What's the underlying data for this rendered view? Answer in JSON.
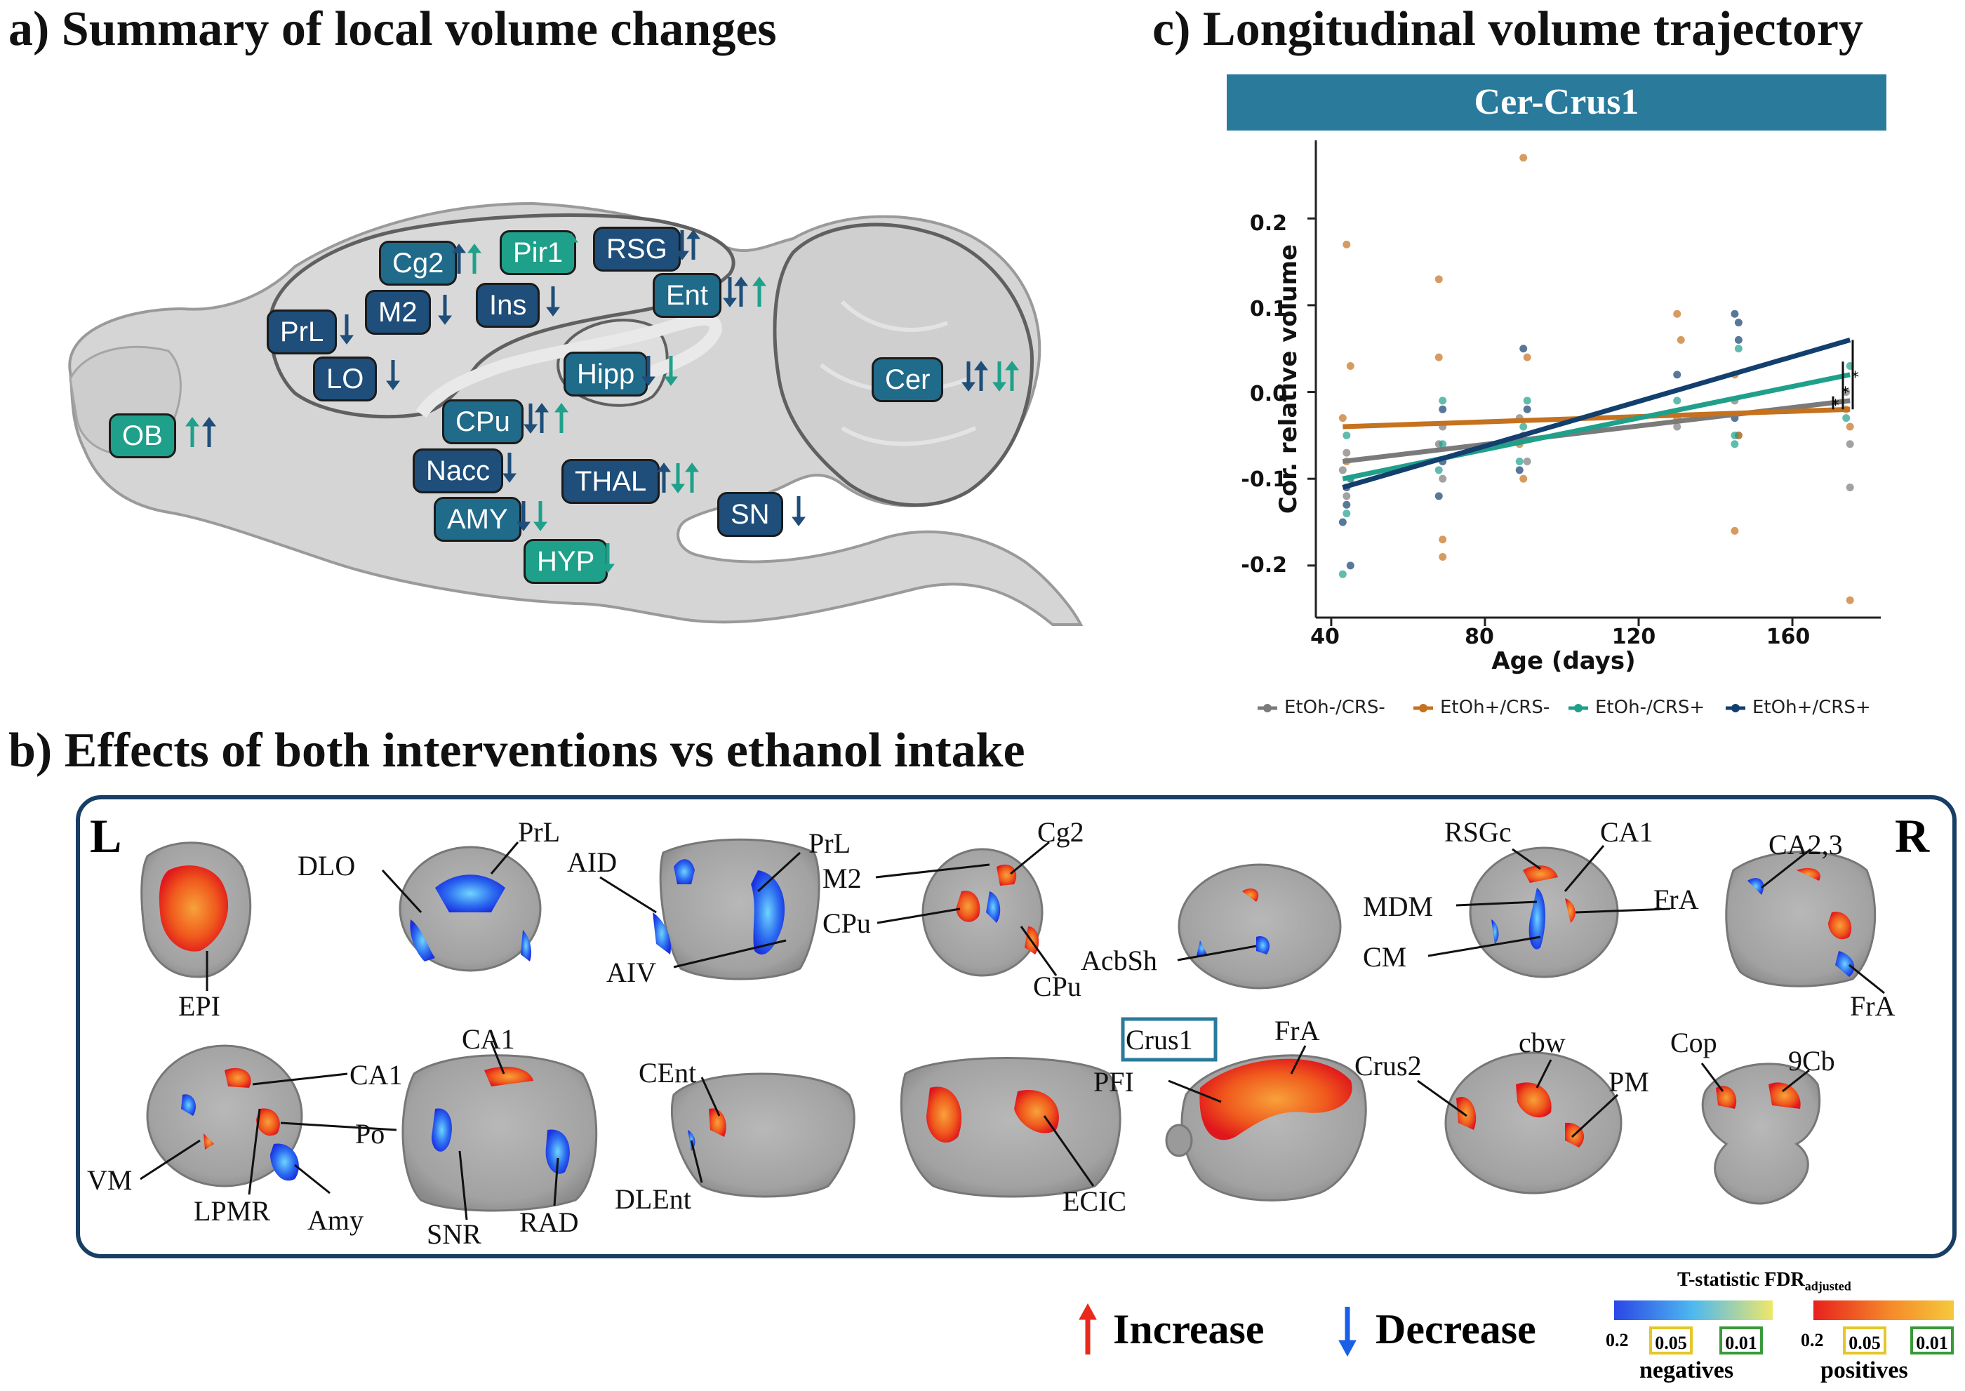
{
  "panel_a": {
    "title": "a) Summary of local volume changes",
    "regions": [
      {
        "label": "Cg2",
        "style": "mid",
        "arrows": [
          "up-dark",
          "up-teal"
        ]
      },
      {
        "label": "Pir1",
        "style": "teal",
        "arrows": [
          "up-teal"
        ]
      },
      {
        "label": "RSG",
        "style": "dark",
        "arrows": [
          "down-dark",
          "up-dark"
        ]
      },
      {
        "label": "M2",
        "style": "dark",
        "arrows": [
          "down-dark"
        ]
      },
      {
        "label": "Ins",
        "style": "dark",
        "arrows": [
          "down-dark"
        ]
      },
      {
        "label": "Ent",
        "style": "mid",
        "arrows": [
          "down-dark",
          "up-dark",
          "up-teal"
        ]
      },
      {
        "label": "PrL",
        "style": "dark",
        "arrows": [
          "down-dark"
        ]
      },
      {
        "label": "LO",
        "style": "dark",
        "arrows": [
          "down-dark"
        ]
      },
      {
        "label": "Hipp",
        "style": "mid",
        "arrows": [
          "down-dark",
          "down-teal"
        ]
      },
      {
        "label": "Cer",
        "style": "mid",
        "arrows": [
          "down-dark",
          "up-dark",
          "down-teal",
          "up-teal"
        ]
      },
      {
        "label": "OB",
        "style": "teal",
        "arrows": [
          "up-teal",
          "up-dark"
        ]
      },
      {
        "label": "CPu",
        "style": "mid",
        "arrows": [
          "down-dark",
          "up-dark",
          "up-teal"
        ]
      },
      {
        "label": "Nacc",
        "style": "dark",
        "arrows": [
          "down-dark"
        ]
      },
      {
        "label": "THAL",
        "style": "dark",
        "arrows": [
          "up-dark",
          "down-teal",
          "up-teal"
        ]
      },
      {
        "label": "AMY",
        "style": "mid",
        "arrows": [
          "down-dark",
          "down-teal"
        ]
      },
      {
        "label": "SN",
        "style": "dark",
        "arrows": [
          "down-dark"
        ]
      },
      {
        "label": "HYP",
        "style": "teal",
        "arrows": [
          "down-teal"
        ]
      }
    ]
  },
  "panel_b": {
    "title": "b) Effects of both interventions vs ethanol intake",
    "left_marker": "L",
    "right_marker": "R",
    "labels": [
      "EPI",
      "DLO",
      "PrL",
      "AID",
      "PrL",
      "AIV",
      "M2",
      "Cg2",
      "CPu",
      "CPu",
      "AcbSh",
      "RSGc",
      "CA1",
      "MDM",
      "FrA",
      "CM",
      "CA2,3",
      "FrA",
      "CA1",
      "VM",
      "Po",
      "LPMR",
      "Amy",
      "CA1",
      "SNR",
      "RAD",
      "CEnt",
      "DLEnt",
      "ECIC",
      "Crus1",
      "PFI",
      "FrA",
      "Crus2",
      "cbw",
      "PM",
      "Cop",
      "9Cb"
    ],
    "increase_label": "Increase",
    "decrease_label": "Decrease",
    "scale_title": "T-statistic FDR",
    "scale_title_sub": "adjusted",
    "negatives": {
      "label": "negatives",
      "start": "0.2",
      "box1": "0.05",
      "box2": "0.01"
    },
    "positives": {
      "label": "positives",
      "start": "0.2",
      "box1": "0.05",
      "box2": "0.01"
    }
  },
  "chart_data": {
    "type": "scatter",
    "title": "c) Longitudinal volume trajectory",
    "subtitle": "Cer-Crus1",
    "xlabel": "Age (days)",
    "ylabel": "Cor. relative volume",
    "xlim": [
      36,
      183
    ],
    "ylim": [
      -0.26,
      0.29
    ],
    "xticks": [
      40,
      80,
      120,
      160
    ],
    "yticks": [
      -0.2,
      -0.1,
      0.0,
      0.1,
      0.2
    ],
    "ytick_labels": [
      "-0.2",
      "-0.1",
      "0.0",
      "0.1",
      "0.2"
    ],
    "xtick_labels": [
      "40",
      "80",
      "120",
      "160"
    ],
    "legend_position": "bottom",
    "significance_markers": [
      "*",
      "*",
      "*"
    ],
    "series": [
      {
        "name": "EtOh-/CRS-",
        "color": "#7a7a7a",
        "fit": [
          [
            43,
            -0.08
          ],
          [
            175,
            -0.01
          ]
        ],
        "points": [
          [
            43,
            -0.09
          ],
          [
            44,
            -0.12
          ],
          [
            45,
            -0.1
          ],
          [
            44,
            -0.07
          ],
          [
            68,
            -0.06
          ],
          [
            69,
            -0.04
          ],
          [
            69,
            -0.1
          ],
          [
            90,
            -0.05
          ],
          [
            91,
            -0.08
          ],
          [
            89,
            -0.03
          ],
          [
            130,
            -0.04
          ],
          [
            145,
            -0.01
          ],
          [
            146,
            -0.05
          ],
          [
            175,
            -0.06
          ],
          [
            175,
            -0.11
          ],
          [
            174,
            0.0
          ]
        ]
      },
      {
        "name": "EtOh+/CRS-",
        "color": "#c5711e",
        "fit": [
          [
            43,
            -0.04
          ],
          [
            175,
            -0.02
          ]
        ],
        "points": [
          [
            44,
            0.17
          ],
          [
            45,
            0.03
          ],
          [
            43,
            -0.03
          ],
          [
            44,
            -0.08
          ],
          [
            68,
            0.13
          ],
          [
            69,
            -0.19
          ],
          [
            69,
            -0.17
          ],
          [
            68,
            0.04
          ],
          [
            90,
            0.27
          ],
          [
            91,
            0.04
          ],
          [
            89,
            -0.06
          ],
          [
            90,
            -0.1
          ],
          [
            130,
            0.09
          ],
          [
            131,
            0.06
          ],
          [
            130,
            -0.03
          ],
          [
            145,
            -0.16
          ],
          [
            146,
            -0.05
          ],
          [
            145,
            0.02
          ],
          [
            175,
            -0.24
          ],
          [
            174,
            -0.02
          ],
          [
            175,
            -0.04
          ]
        ]
      },
      {
        "name": "EtOh-/CRS+",
        "color": "#1fa08a",
        "fit": [
          [
            43,
            -0.1
          ],
          [
            175,
            0.02
          ]
        ],
        "points": [
          [
            43,
            -0.21
          ],
          [
            44,
            -0.14
          ],
          [
            45,
            -0.1
          ],
          [
            44,
            -0.05
          ],
          [
            68,
            -0.09
          ],
          [
            69,
            -0.01
          ],
          [
            69,
            -0.06
          ],
          [
            90,
            -0.04
          ],
          [
            91,
            -0.01
          ],
          [
            89,
            -0.08
          ],
          [
            130,
            -0.01
          ],
          [
            145,
            -0.05
          ],
          [
            146,
            0.05
          ],
          [
            145,
            -0.06
          ],
          [
            175,
            0.03
          ],
          [
            174,
            -0.03
          ]
        ]
      },
      {
        "name": "EtOh+/CRS+",
        "color": "#123f6e",
        "fit": [
          [
            43,
            -0.11
          ],
          [
            175,
            0.06
          ]
        ],
        "points": [
          [
            43,
            -0.15
          ],
          [
            44,
            -0.11
          ],
          [
            45,
            -0.2
          ],
          [
            44,
            -0.13
          ],
          [
            68,
            -0.12
          ],
          [
            69,
            -0.02
          ],
          [
            69,
            -0.08
          ],
          [
            90,
            0.05
          ],
          [
            91,
            -0.02
          ],
          [
            89,
            -0.09
          ],
          [
            130,
            0.02
          ],
          [
            145,
            0.09
          ],
          [
            146,
            0.08
          ],
          [
            145,
            -0.03
          ],
          [
            146,
            0.06
          ]
        ]
      }
    ]
  }
}
